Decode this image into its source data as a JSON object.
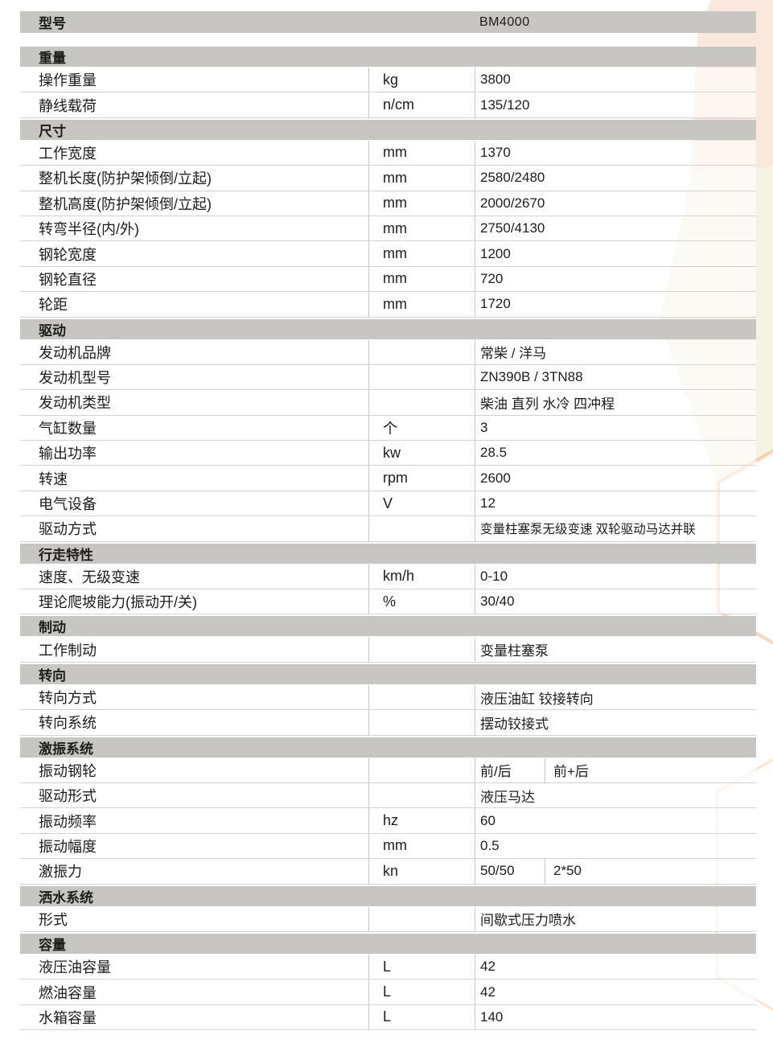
{
  "colors": {
    "header_gray": "#c7c6c3",
    "row_line": "#d4d3d1",
    "column_divider": "#c8c7c5",
    "text": "#1c1c1b",
    "bg_peach": "#fbe8dc",
    "bg_ivory": "#f5f3e3",
    "hexagon_outline": "#f3a873"
  },
  "table": {
    "model_row": {
      "label": "型号",
      "value": "BM4000"
    },
    "sections": [
      {
        "header": "重量",
        "rows": [
          {
            "label": "操作重量",
            "unit": "kg",
            "value": "3800"
          },
          {
            "label": "静线载荷",
            "unit": "n/cm",
            "value": "135/120"
          }
        ]
      },
      {
        "header": "尺寸",
        "rows": [
          {
            "label": "工作宽度",
            "unit": "mm",
            "value": "1370"
          },
          {
            "label": "整机长度(防护架倾倒/立起)",
            "unit": "mm",
            "value": "2580/2480"
          },
          {
            "label": "整机高度(防护架倾倒/立起)",
            "unit": "mm",
            "value": "2000/2670"
          },
          {
            "label": "转弯半径(内/外)",
            "unit": "mm",
            "value": "2750/4130"
          },
          {
            "label": "钢轮宽度",
            "unit": "mm",
            "value": "1200"
          },
          {
            "label": "钢轮直径",
            "unit": "mm",
            "value": "720"
          },
          {
            "label": "轮距",
            "unit": "mm",
            "value": "1720"
          }
        ]
      },
      {
        "header": "驱动",
        "rows": [
          {
            "label": "发动机品牌",
            "unit": "",
            "value": "常柴 / 洋马"
          },
          {
            "label": "发动机型号",
            "unit": "",
            "value": "ZN390B / 3TN88"
          },
          {
            "label": "发动机类型",
            "unit": "",
            "value": "柴油 直列 水冷 四冲程"
          },
          {
            "label": "气缸数量",
            "unit": "个",
            "value": "3"
          },
          {
            "label": "输出功率",
            "unit": "kw",
            "value": "28.5"
          },
          {
            "label": "转速",
            "unit": "rpm",
            "value": "2600"
          },
          {
            "label": "电气设备",
            "unit": "V",
            "value": "12"
          },
          {
            "label": "驱动方式",
            "unit": "",
            "value": "变量柱塞泵无级变速 双轮驱动马达并联",
            "small": true
          }
        ]
      },
      {
        "header": "行走特性",
        "rows": [
          {
            "label": "速度、无级变速",
            "unit": "km/h",
            "value": "0-10"
          },
          {
            "label": "理论爬坡能力(振动开/关)",
            "unit": "%",
            "value": "30/40"
          }
        ]
      },
      {
        "header": "制动",
        "rows": [
          {
            "label": "工作制动",
            "unit": "",
            "value": "变量柱塞泵"
          }
        ]
      },
      {
        "header": "转向",
        "rows": [
          {
            "label": "转向方式",
            "unit": "",
            "value": "液压油缸 铰接转向"
          },
          {
            "label": "转向系统",
            "unit": "",
            "value": "摆动铰接式"
          }
        ]
      },
      {
        "header": "激振系统",
        "rows": [
          {
            "label": "振动钢轮",
            "unit": "",
            "value": "前/后",
            "value2": "前+后"
          },
          {
            "label": "驱动形式",
            "unit": "",
            "value": "液压马达"
          },
          {
            "label": "振动频率",
            "unit": "hz",
            "value": "60"
          },
          {
            "label": "振动幅度",
            "unit": "mm",
            "value": "0.5"
          },
          {
            "label": "激振力",
            "unit": "kn",
            "value": "50/50",
            "value2": "2*50"
          }
        ]
      },
      {
        "header": "洒水系统",
        "rows": [
          {
            "label": "形式",
            "unit": "",
            "value": "间歇式压力喷水"
          }
        ]
      },
      {
        "header": "容量",
        "rows": [
          {
            "label": "液压油容量",
            "unit": "L",
            "value": "42"
          },
          {
            "label": "燃油容量",
            "unit": "L",
            "value": "42"
          },
          {
            "label": "水箱容量",
            "unit": "L",
            "value": "140"
          }
        ]
      }
    ]
  }
}
